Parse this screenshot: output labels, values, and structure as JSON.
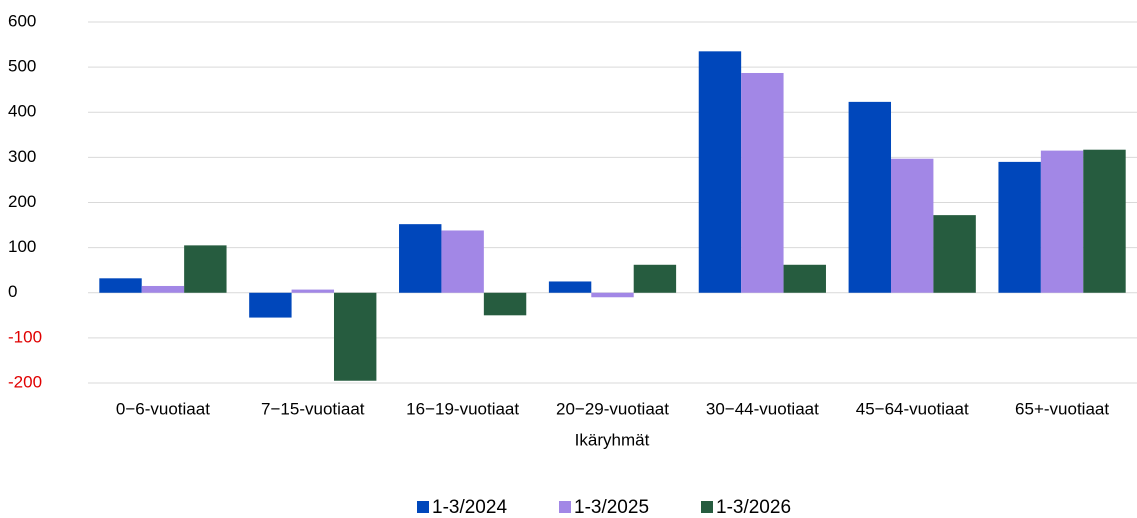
{
  "chart_data": {
    "type": "bar",
    "x_label": "Ikäryhmät",
    "categories": [
      "0−6-vuotiaat",
      "7−15-vuotiaat",
      "16−19-vuotiaat",
      "20−29-vuotiaat",
      "30−44-vuotiaat",
      "45−64-vuotiaat",
      "65+-vuotiaat"
    ],
    "series": [
      {
        "name": "1-3/2024",
        "color": "#0047bb",
        "values": [
          32,
          -55,
          152,
          25,
          535,
          423,
          290
        ]
      },
      {
        "name": "1-3/2025",
        "color": "#a287e6",
        "values": [
          15,
          7,
          138,
          -10,
          487,
          297,
          315
        ]
      },
      {
        "name": "1-3/2026",
        "color": "#265c3f",
        "values": [
          105,
          -195,
          -50,
          62,
          62,
          172,
          317
        ]
      }
    ],
    "ylim": [
      -200,
      600
    ],
    "yticks": [
      -200,
      -100,
      0,
      100,
      200,
      300,
      400,
      500,
      600
    ],
    "grid": true,
    "negative_tick_color": "#e00000",
    "legend": "bottom"
  }
}
